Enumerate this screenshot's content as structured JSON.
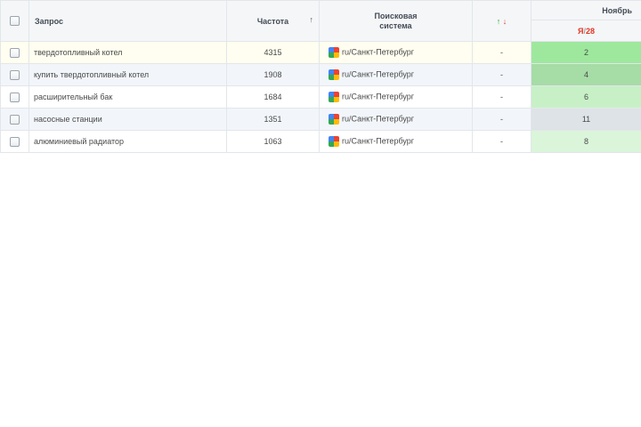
{
  "header": {
    "query": "Запрос",
    "frequency": "Частота",
    "sort_arrow": "↑",
    "engine_line1": "Поисковая",
    "engine_line2": "система",
    "change_up": "↑",
    "change_down": "↓",
    "month": "Ноябрь",
    "ya_letter": "Я",
    "ya_slash": "/",
    "ya_date": "28"
  },
  "colors": {
    "pos_2": "#9ee89e",
    "pos_4": "#a6dca6",
    "pos_6": "#c7f0c7",
    "pos_11": "#dde3e6",
    "pos_8": "#dbf5db"
  },
  "rows": [
    {
      "query": "твердотопливный котел",
      "frequency": "4315",
      "engine": "ru/Санкт-Петербург",
      "change": "-",
      "position": "2"
    },
    {
      "query": "купить твердотопливный котел",
      "frequency": "1908",
      "engine": "ru/Санкт-Петербург",
      "change": "-",
      "position": "4"
    },
    {
      "query": "расширительный бак",
      "frequency": "1684",
      "engine": "ru/Санкт-Петербург",
      "change": "-",
      "position": "6"
    },
    {
      "query": "насосные станции",
      "frequency": "1351",
      "engine": "ru/Санкт-Петербург",
      "change": "-",
      "position": "11"
    },
    {
      "query": "алюминиевый радиатор",
      "frequency": "1063",
      "engine": "ru/Санкт-Петербург",
      "change": "-",
      "position": "8"
    }
  ]
}
